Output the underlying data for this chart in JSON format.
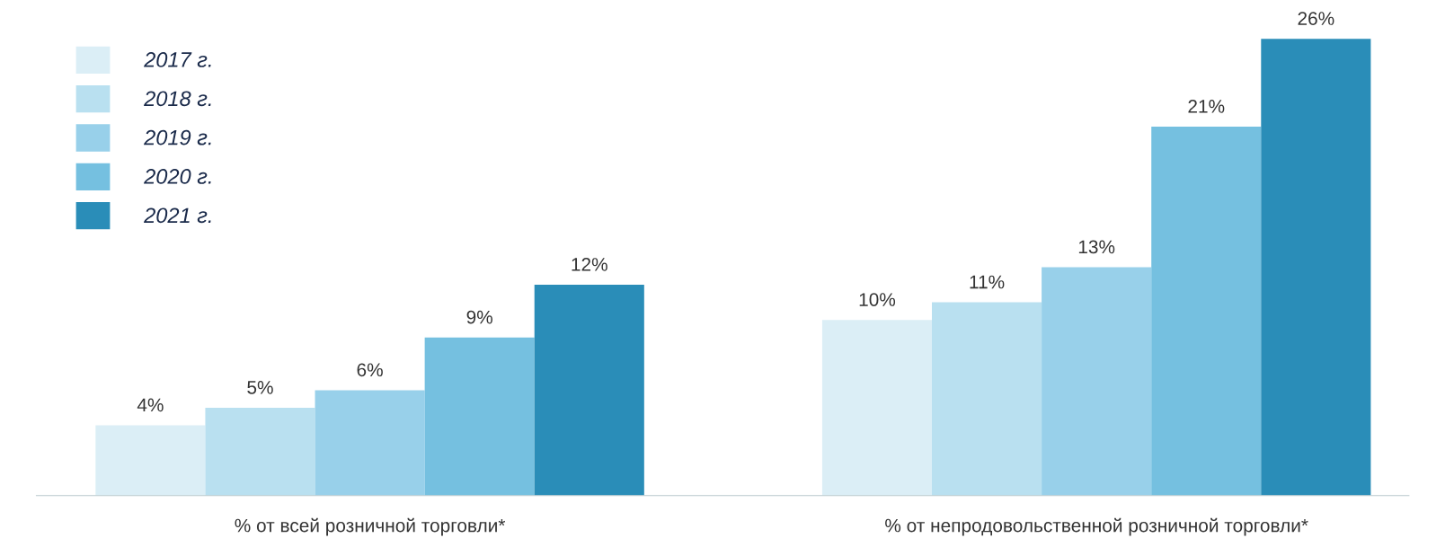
{
  "chart_data": {
    "type": "bar",
    "categories": [
      "% от всей розничной торговли*",
      "% от непродовольственной розничной торговли*"
    ],
    "series": [
      {
        "name": "2017 г.",
        "color": "#dbeef6",
        "values": [
          4,
          10
        ],
        "value_labels": [
          "4%",
          "10%"
        ]
      },
      {
        "name": "2018 г.",
        "color": "#b9e0f0",
        "values": [
          5,
          11
        ],
        "value_labels": [
          "5%",
          "11%"
        ]
      },
      {
        "name": "2019 г.",
        "color": "#98d0ea",
        "values": [
          6,
          13
        ],
        "value_labels": [
          "6%",
          "13%"
        ]
      },
      {
        "name": "2020 г.",
        "color": "#75c0e0",
        "values": [
          9,
          21
        ],
        "value_labels": [
          "9%",
          "21%"
        ]
      },
      {
        "name": "2021 г.",
        "color": "#2a8db8",
        "values": [
          12,
          26
        ],
        "value_labels": [
          "12%",
          "26%"
        ]
      }
    ],
    "legend": "top left",
    "grid": false,
    "tick_labels": "x"
  }
}
